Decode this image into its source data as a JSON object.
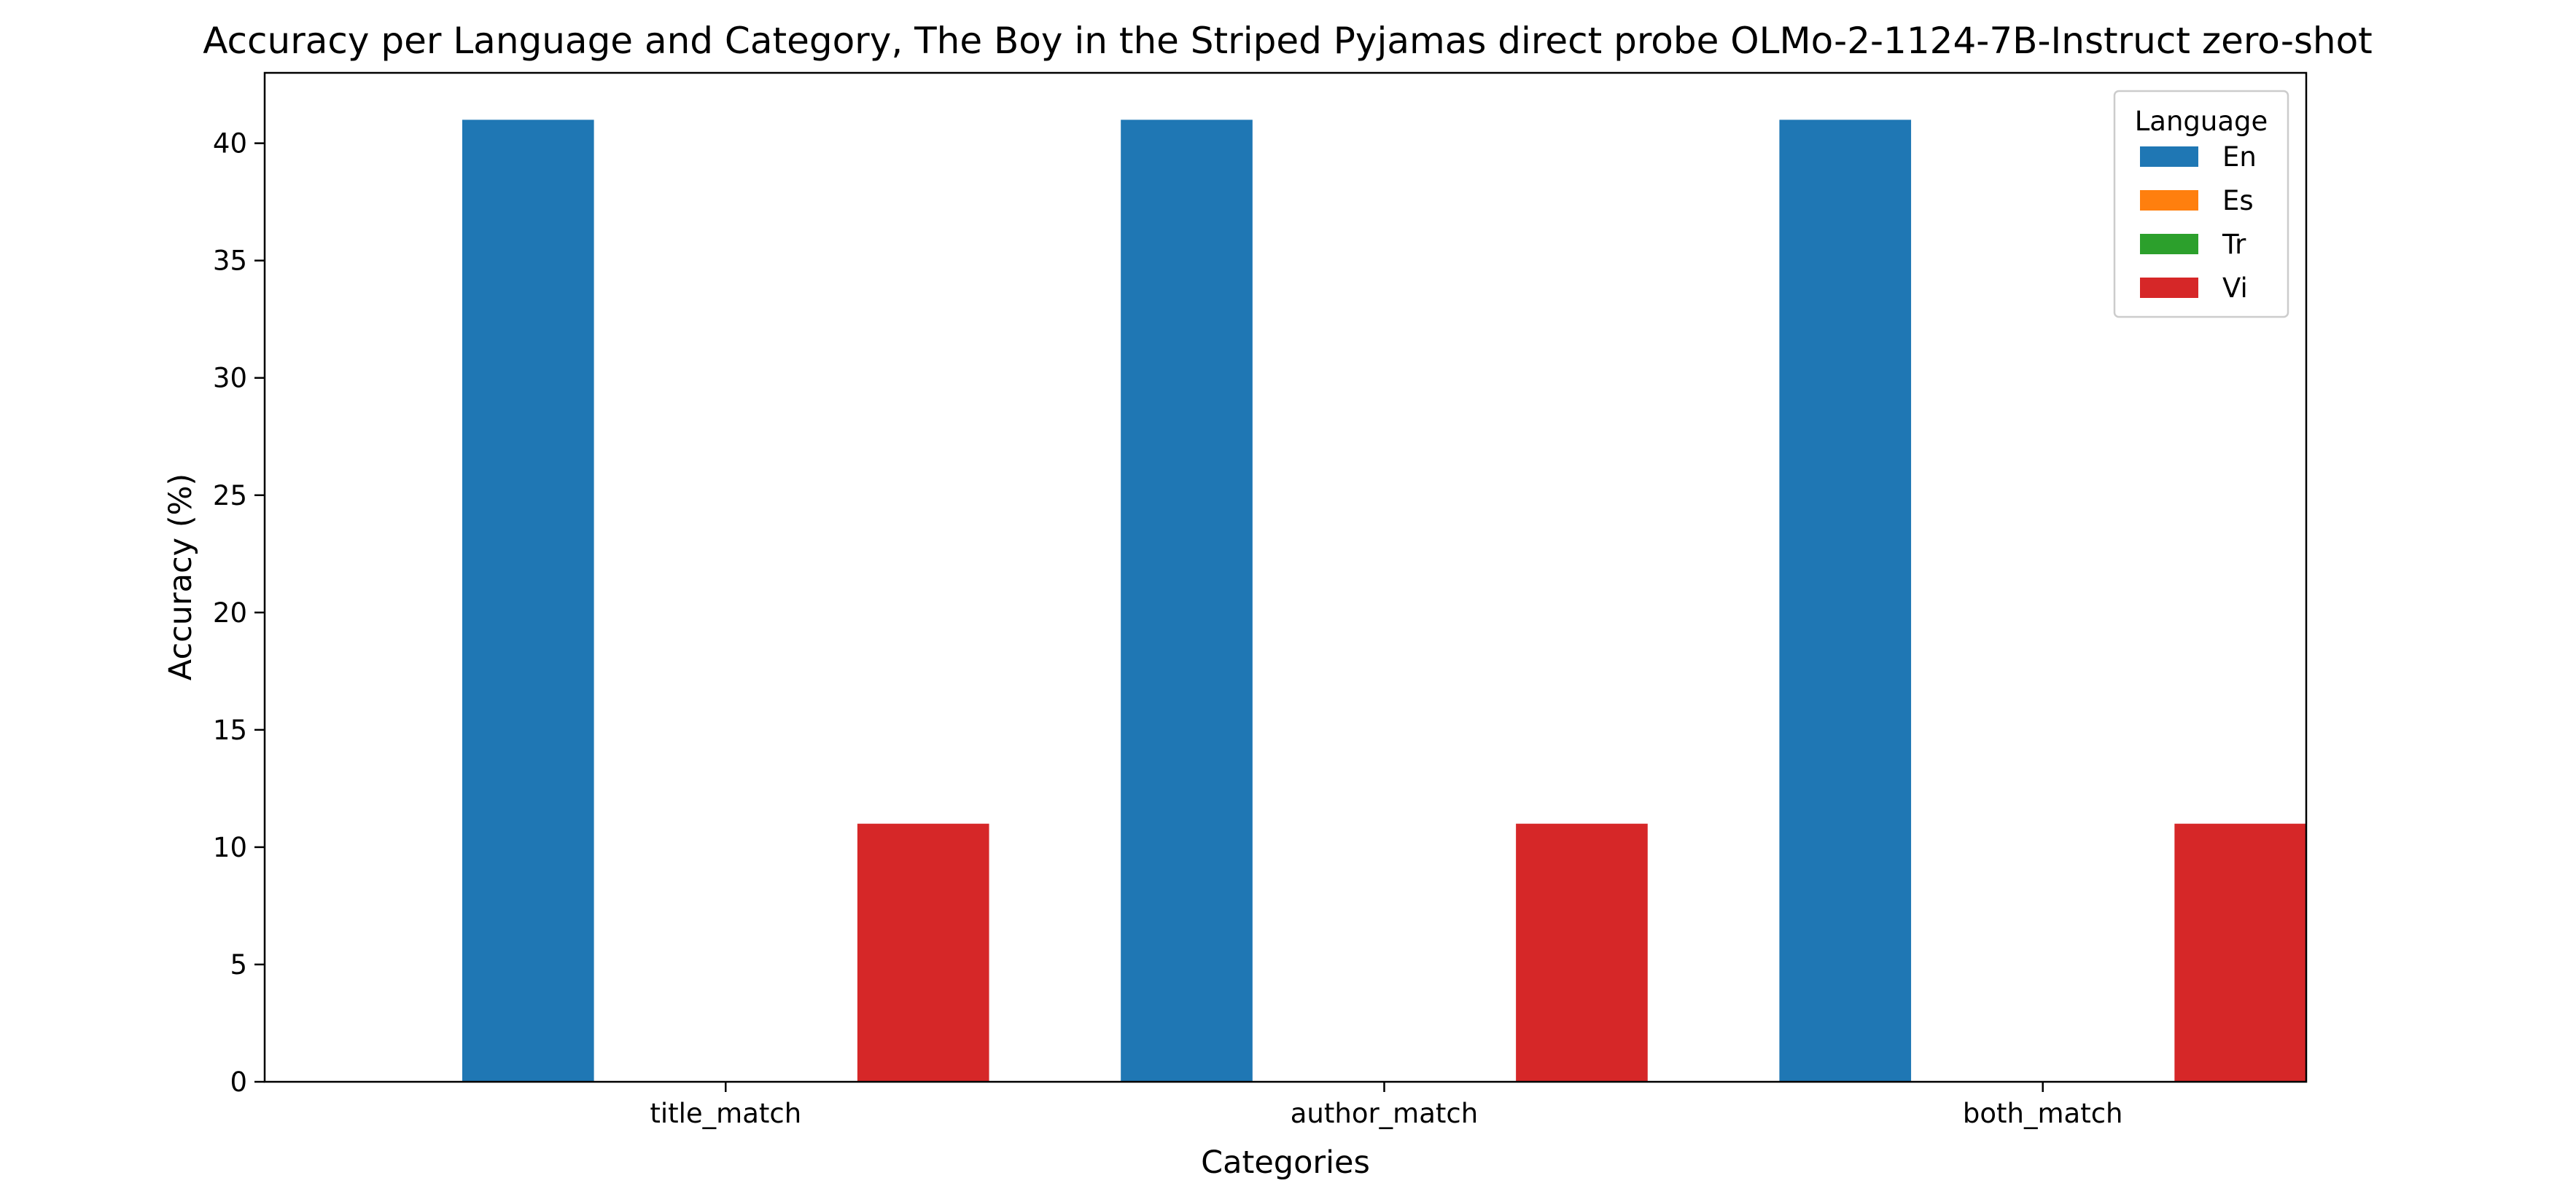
{
  "chart_data": {
    "type": "bar",
    "title": "Accuracy per Language and Category, The Boy in the Striped Pyjamas direct probe OLMo-2-1124-7B-Instruct zero-shot",
    "xlabel": "Categories",
    "ylabel": "Accuracy (%)",
    "categories": [
      "title_match",
      "author_match",
      "both_match"
    ],
    "ylim": [
      0,
      43
    ],
    "yticks": [
      0,
      5,
      10,
      15,
      20,
      25,
      30,
      35,
      40
    ],
    "grid": false,
    "legend": {
      "title": "Language",
      "placement": "top-right"
    },
    "series": [
      {
        "name": "En",
        "color": "#1f77b4",
        "values": [
          41,
          41,
          41
        ]
      },
      {
        "name": "Es",
        "color": "#ff7f0e",
        "values": [
          0,
          0,
          0
        ]
      },
      {
        "name": "Tr",
        "color": "#2ca02c",
        "values": [
          0,
          0,
          0
        ]
      },
      {
        "name": "Vi",
        "color": "#d62728",
        "values": [
          11,
          11,
          11
        ]
      }
    ]
  }
}
